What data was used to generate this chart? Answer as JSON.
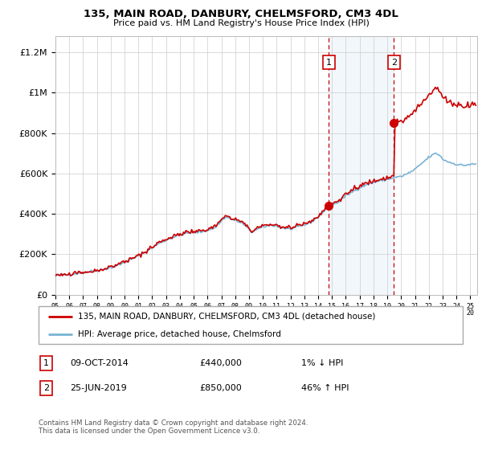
{
  "title": "135, MAIN ROAD, DANBURY, CHELMSFORD, CM3 4DL",
  "subtitle": "Price paid vs. HM Land Registry's House Price Index (HPI)",
  "legend_line1": "135, MAIN ROAD, DANBURY, CHELMSFORD, CM3 4DL (detached house)",
  "legend_line2": "HPI: Average price, detached house, Chelmsford",
  "footnote": "Contains HM Land Registry data © Crown copyright and database right 2024.\nThis data is licensed under the Open Government Licence v3.0.",
  "annotation1": {
    "label": "1",
    "date": "09-OCT-2014",
    "price": 440000,
    "pct": "1% ↓ HPI"
  },
  "annotation2": {
    "label": "2",
    "date": "25-JUN-2019",
    "price": 850000,
    "pct": "46% ↑ HPI"
  },
  "sale1_x": 2014.77,
  "sale2_x": 2019.48,
  "ylim": [
    0,
    1280000
  ],
  "xlim": [
    1995.0,
    2025.5
  ],
  "hpi_color": "#7ab3d4",
  "price_color": "#cc0000",
  "sale_dot_color": "#cc0000",
  "shade_color": "#cce0f0",
  "grid_color": "#cccccc",
  "num_box_color": "#cc0000"
}
